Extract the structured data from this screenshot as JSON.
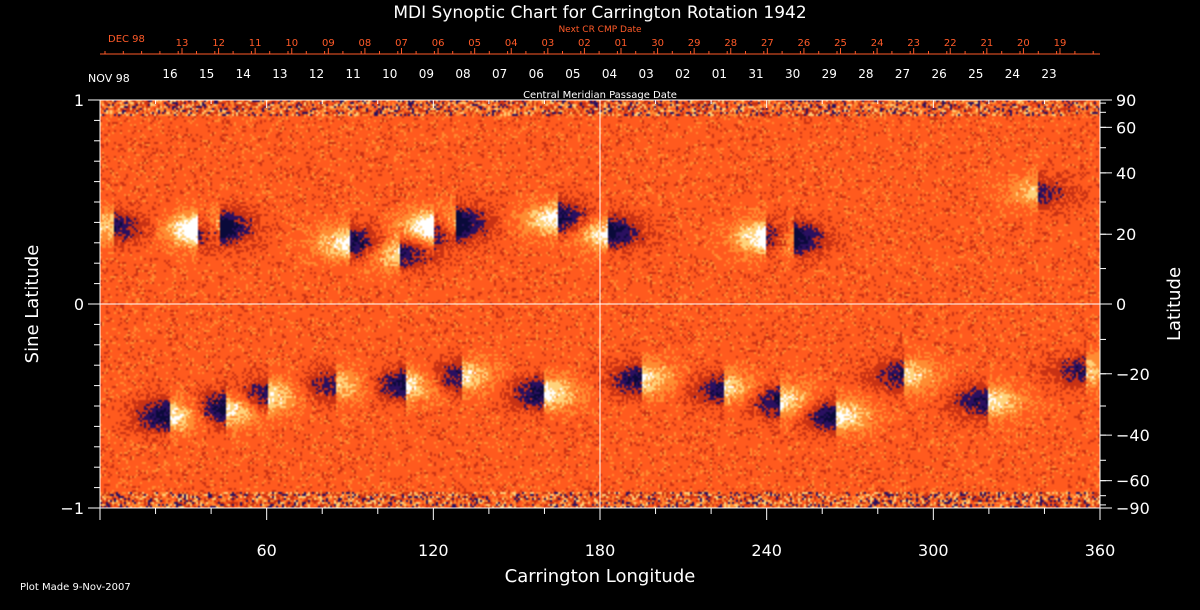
{
  "chart_data": {
    "type": "heatmap",
    "title": "MDI Synoptic Chart for Carrington Rotation 1942",
    "xlabel": "Carrington Longitude",
    "ylabel_left": "Sine Latitude",
    "ylabel_right": "Latitude",
    "xlim": [
      0,
      360
    ],
    "ylim": [
      -1,
      1
    ],
    "x_ticks": [
      60,
      120,
      180,
      240,
      300,
      360
    ],
    "left_ticks": [
      {
        "value": 1,
        "label": "1"
      },
      {
        "value": 0,
        "label": "0"
      },
      {
        "value": -1,
        "label": "−1"
      }
    ],
    "right_ticks": [
      {
        "lat": 90,
        "label": "90"
      },
      {
        "lat": 60,
        "label": "60"
      },
      {
        "lat": 40,
        "label": "40"
      },
      {
        "lat": 20,
        "label": "20"
      },
      {
        "lat": 0,
        "label": "0"
      },
      {
        "lat": -20,
        "label": "−20"
      },
      {
        "lat": -40,
        "label": "−40"
      },
      {
        "lat": -60,
        "label": "−60"
      },
      {
        "lat": -90,
        "label": "−90"
      }
    ],
    "reference_lines": {
      "horizontal_at": 0,
      "vertical_at": 180
    },
    "top_axis_red": {
      "label": "Next CR CMP Date",
      "month_label": "DEC 98",
      "days": [
        "13",
        "12",
        "11",
        "10",
        "09",
        "08",
        "07",
        "06",
        "05",
        "04",
        "03",
        "02",
        "01",
        "30",
        "29",
        "28",
        "27",
        "26",
        "25",
        "24",
        "23",
        "22",
        "21",
        "20",
        "19"
      ]
    },
    "top_axis_white": {
      "label": "Central Meridian Passage Date",
      "month_label": "NOV 98",
      "days": [
        "16",
        "15",
        "14",
        "13",
        "12",
        "11",
        "10",
        "09",
        "08",
        "07",
        "06",
        "05",
        "04",
        "03",
        "02",
        "01",
        "31",
        "30",
        "29",
        "28",
        "27",
        "26",
        "25",
        "24",
        "23"
      ]
    },
    "footer": "Plot Made  9-Nov-2007",
    "colormap": [
      "#0a0a3a",
      "#2a1060",
      "#c83214",
      "#ff5a1e",
      "#ff8c32",
      "#ffd27a",
      "#ffffff"
    ],
    "active_regions": [
      {
        "lon": 35,
        "sinlat": 0.36,
        "strength": 1.0
      },
      {
        "lon": 43,
        "sinlat": 0.38,
        "strength": 0.8
      },
      {
        "lon": 90,
        "sinlat": 0.3,
        "strength": 1.0
      },
      {
        "lon": 108,
        "sinlat": 0.25,
        "strength": 0.8
      },
      {
        "lon": 120,
        "sinlat": 0.37,
        "strength": 1.0
      },
      {
        "lon": 128,
        "sinlat": 0.4,
        "strength": 0.9
      },
      {
        "lon": 165,
        "sinlat": 0.42,
        "strength": 1.0
      },
      {
        "lon": 183,
        "sinlat": 0.35,
        "strength": 1.0
      },
      {
        "lon": 240,
        "sinlat": 0.33,
        "strength": 1.0
      },
      {
        "lon": 250,
        "sinlat": 0.32,
        "strength": 0.8
      },
      {
        "lon": 338,
        "sinlat": 0.55,
        "strength": 0.6
      },
      {
        "lon": 5,
        "sinlat": 0.38,
        "strength": 0.7
      },
      {
        "lon": 45,
        "sinlat": -0.52,
        "strength": 1.0
      },
      {
        "lon": 25,
        "sinlat": -0.55,
        "strength": 1.0
      },
      {
        "lon": 60,
        "sinlat": -0.45,
        "strength": 0.8
      },
      {
        "lon": 85,
        "sinlat": -0.4,
        "strength": 0.7
      },
      {
        "lon": 110,
        "sinlat": -0.4,
        "strength": 0.9
      },
      {
        "lon": 130,
        "sinlat": -0.36,
        "strength": 0.8
      },
      {
        "lon": 160,
        "sinlat": -0.44,
        "strength": 1.0
      },
      {
        "lon": 195,
        "sinlat": -0.37,
        "strength": 0.9
      },
      {
        "lon": 225,
        "sinlat": -0.42,
        "strength": 0.8
      },
      {
        "lon": 245,
        "sinlat": -0.48,
        "strength": 0.9
      },
      {
        "lon": 265,
        "sinlat": -0.55,
        "strength": 1.0
      },
      {
        "lon": 290,
        "sinlat": -0.35,
        "strength": 0.8
      },
      {
        "lon": 320,
        "sinlat": -0.48,
        "strength": 0.9
      },
      {
        "lon": 355,
        "sinlat": -0.33,
        "strength": 0.7
      }
    ]
  }
}
